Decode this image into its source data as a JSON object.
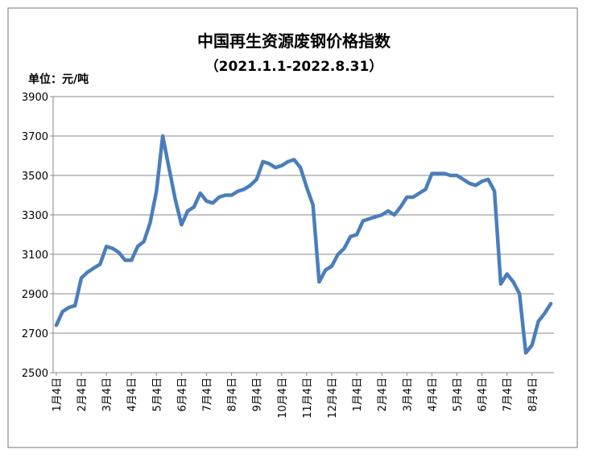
{
  "chart_data": {
    "type": "line",
    "title": "中国再生资源废钢价格指数",
    "subtitle": "（2021.1.1-2022.8.31）",
    "y_label": "单位：元/吨",
    "categories": [
      "1月4日",
      null,
      null,
      null,
      "2月4日",
      null,
      null,
      null,
      "3月4日",
      null,
      null,
      null,
      "4月4日",
      null,
      null,
      null,
      "5月4日",
      null,
      null,
      null,
      "6月4日",
      null,
      null,
      null,
      "7月4日",
      null,
      null,
      null,
      "8月4日",
      null,
      null,
      null,
      "9月4日",
      null,
      null,
      null,
      "10月4日",
      null,
      null,
      null,
      "11月4日",
      null,
      null,
      null,
      "12月4日",
      null,
      null,
      null,
      "1月4日",
      null,
      null,
      null,
      "2月4日",
      null,
      null,
      null,
      "3月4日",
      null,
      null,
      null,
      "4月4日",
      null,
      null,
      null,
      "5月4日",
      null,
      null,
      null,
      "6月4日",
      null,
      null,
      null,
      "7月4日",
      null,
      null,
      null,
      "8月4日",
      null,
      null,
      null
    ],
    "values": [
      2740,
      2810,
      2830,
      2840,
      2980,
      3010,
      3030,
      3050,
      3140,
      3130,
      3110,
      3070,
      3070,
      3140,
      3165,
      3260,
      3420,
      3700,
      3540,
      3380,
      3250,
      3320,
      3340,
      3410,
      3370,
      3360,
      3390,
      3400,
      3400,
      3420,
      3430,
      3450,
      3480,
      3570,
      3560,
      3540,
      3550,
      3570,
      3580,
      3540,
      3440,
      3350,
      2960,
      3020,
      3040,
      3100,
      3130,
      3190,
      3200,
      3270,
      3280,
      3290,
      3300,
      3320,
      3300,
      3340,
      3390,
      3390,
      3410,
      3430,
      3510,
      3510,
      3510,
      3500,
      3500,
      3480,
      3460,
      3450,
      3470,
      3480,
      3420,
      2950,
      3000,
      2960,
      2900,
      2600,
      2640,
      2760,
      2800,
      2850
    ],
    "color": "#4a7ebb",
    "ylim": [
      2500,
      3900
    ],
    "yticks": [
      2500,
      2700,
      2900,
      3100,
      3300,
      3500,
      3700,
      3900
    ],
    "grid": true
  }
}
